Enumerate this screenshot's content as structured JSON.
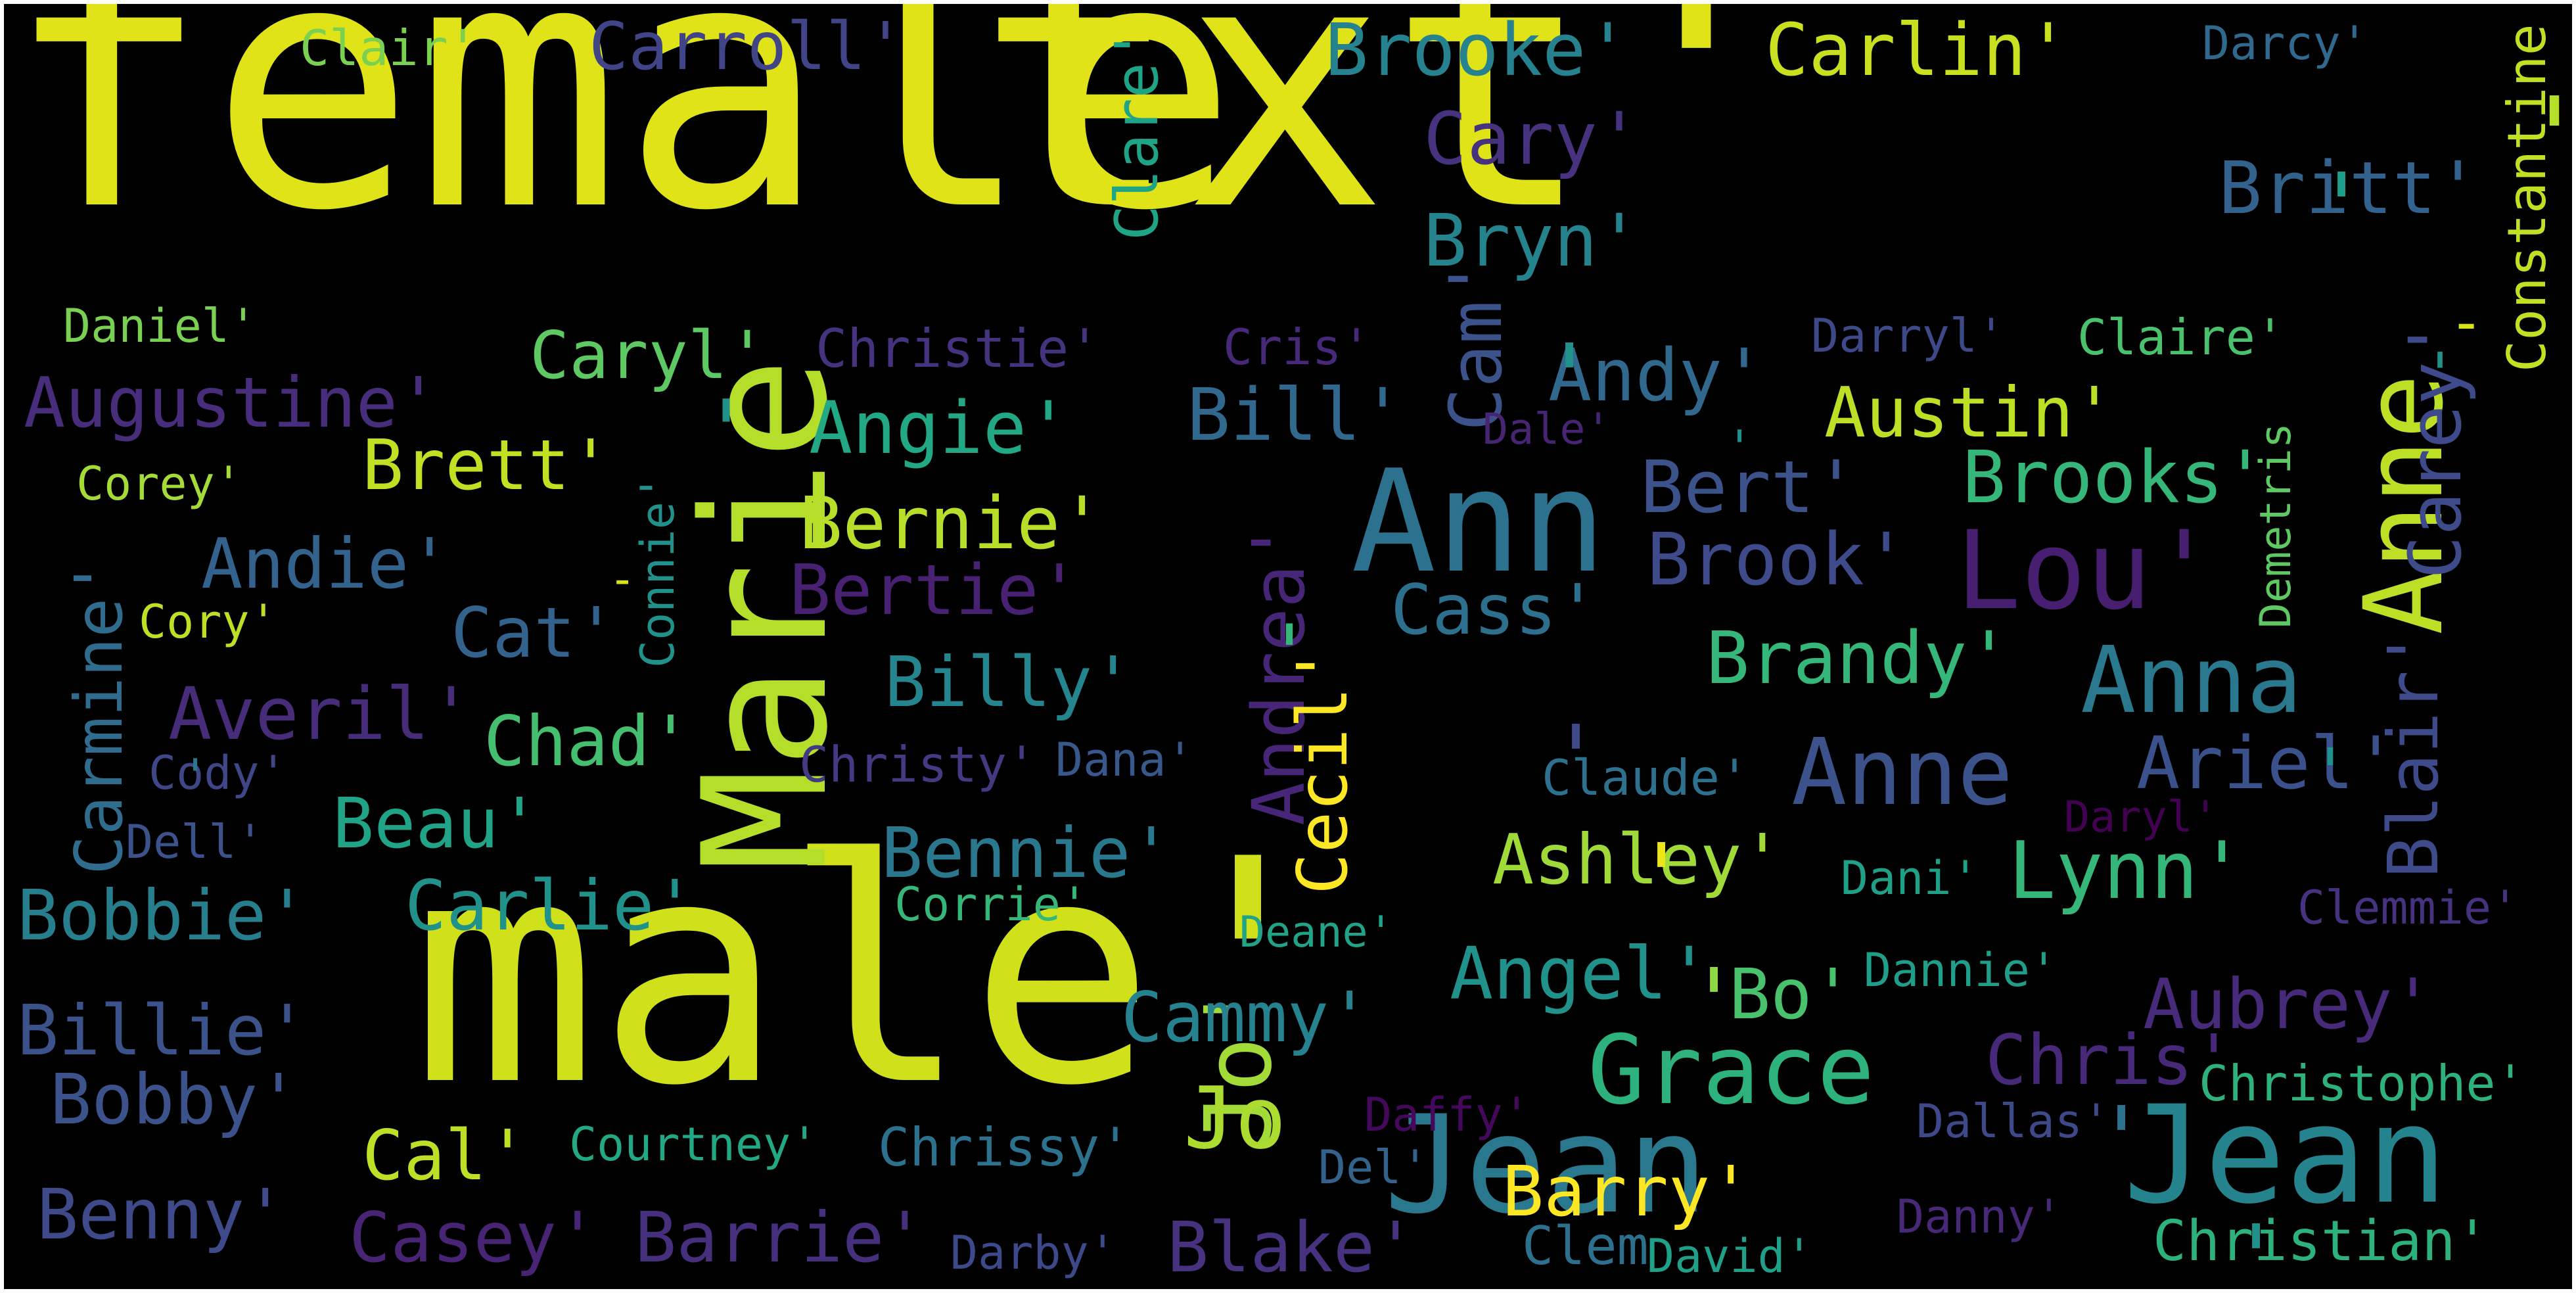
{
  "words": [
    {
      "text": "female",
      "color": "#dfe318"
    },
    {
      "text": "txt'",
      "color": "#dfe318"
    },
    {
      "text": "male'",
      "color": "#d0e11c"
    },
    {
      "text": "Marie",
      "color": "#b5de2b"
    },
    {
      "text": "Jean",
      "color": "#2a788e"
    },
    {
      "text": "Ann",
      "color": "#2c728e"
    },
    {
      "text": "Jean",
      "color": "#25838e"
    },
    {
      "text": "Anne",
      "color": "#bddf26"
    },
    {
      "text": "Grace",
      "color": "#2db27d"
    },
    {
      "text": "Lou'",
      "color": "#481f70"
    },
    {
      "text": "Anne",
      "color": "#3b528b"
    },
    {
      "text": "Anna",
      "color": "#2a788e"
    },
    {
      "text": "Jo'",
      "color": "#a2da37"
    },
    {
      "text": "Jo",
      "color": "#addc30"
    },
    {
      "text": "Brooke'",
      "color": "#26828e"
    },
    {
      "text": "Carlin'",
      "color": "#c8e020"
    },
    {
      "text": "Carroll'",
      "color": "#414487"
    },
    {
      "text": "Clair'",
      "color": "#7ad151"
    },
    {
      "text": "Darcy'",
      "color": "#31688e"
    },
    {
      "text": "Clare'",
      "color": "#20a486"
    },
    {
      "text": "Cary'",
      "color": "#46327e"
    },
    {
      "text": "Britt'",
      "color": "#33638d"
    },
    {
      "text": "Bryn'",
      "color": "#25838e"
    },
    {
      "text": "Constantine",
      "color": "#c2df23"
    },
    {
      "text": "Carey'",
      "color": "#3e4a89"
    },
    {
      "text": "Daniel'",
      "color": "#7ad151"
    },
    {
      "text": "Caryl'",
      "color": "#5ec962"
    },
    {
      "text": "Christie'",
      "color": "#46337f"
    },
    {
      "text": "Cris'",
      "color": "#482878"
    },
    {
      "text": "Cam'",
      "color": "#3b528b"
    },
    {
      "text": "Darryl'",
      "color": "#3e4989"
    },
    {
      "text": "Claire'",
      "color": "#4ac16d"
    },
    {
      "text": "Augustine'",
      "color": "#472d7b"
    },
    {
      "text": "Andy'",
      "color": "#31688e"
    },
    {
      "text": "Bill'",
      "color": "#31688e"
    },
    {
      "text": "Angie'",
      "color": "#22a884"
    },
    {
      "text": "Austin'",
      "color": "#bddf26"
    },
    {
      "text": "Dale'",
      "color": "#482475"
    },
    {
      "text": "Demetris",
      "color": "#5ec962"
    },
    {
      "text": "Brett'",
      "color": "#c2df23"
    },
    {
      "text": "Corey'",
      "color": "#a5db36"
    },
    {
      "text": "Bert'",
      "color": "#3b528b"
    },
    {
      "text": "Brooks'",
      "color": "#35b779"
    },
    {
      "text": "Bernie'",
      "color": "#b8de29"
    },
    {
      "text": "Carmine'",
      "color": "#2f6c8e"
    },
    {
      "text": "Andie'",
      "color": "#33638d"
    },
    {
      "text": "Connie'",
      "color": "#21918c"
    },
    {
      "text": "Bertie'",
      "color": "#482173"
    },
    {
      "text": "Brook'",
      "color": "#3e4a89"
    },
    {
      "text": "Cass'",
      "color": "#2d708e"
    },
    {
      "text": "Cat'",
      "color": "#33638d"
    },
    {
      "text": "Cory'",
      "color": "#bddf26"
    },
    {
      "text": "Andrea'",
      "color": "#482677"
    },
    {
      "text": "Brandy'",
      "color": "#35b779"
    },
    {
      "text": "Blair'",
      "color": "#3e4a89"
    },
    {
      "text": "Billy'",
      "color": "#25858e"
    },
    {
      "text": "Averil'",
      "color": "#472c7a"
    },
    {
      "text": "Cecil'",
      "color": "#fde725"
    },
    {
      "text": "Chad'",
      "color": "#44bf70"
    },
    {
      "text": "Cody'",
      "color": "#3f4788"
    },
    {
      "text": "Christy'",
      "color": "#443a83"
    },
    {
      "text": "Dana'",
      "color": "#38588c"
    },
    {
      "text": "Claude'",
      "color": "#2d718e"
    },
    {
      "text": "Ariel'",
      "color": "#3b518b"
    },
    {
      "text": "Beau'",
      "color": "#20a386"
    },
    {
      "text": "Dell'",
      "color": "#3b528b"
    },
    {
      "text": "Daryl'",
      "color": "#440154"
    },
    {
      "text": "Bennie'",
      "color": "#2a788e"
    },
    {
      "text": "Ashley'",
      "color": "#a0da39"
    },
    {
      "text": "Lynn'",
      "color": "#35b779"
    },
    {
      "text": "Dani'",
      "color": "#1fa188"
    },
    {
      "text": "Bobbie'",
      "color": "#277f8e"
    },
    {
      "text": "Carlie'",
      "color": "#21918c"
    },
    {
      "text": "Corrie'",
      "color": "#35b779"
    },
    {
      "text": "Clemmie'",
      "color": "#46327e"
    },
    {
      "text": "Deane'",
      "color": "#20a386"
    },
    {
      "text": "Angel'",
      "color": "#21918c"
    },
    {
      "text": "Dannie'",
      "color": "#1f9e89"
    },
    {
      "text": "Bo'",
      "color": "#4ac16d"
    },
    {
      "text": "Cammy'",
      "color": "#26828e"
    },
    {
      "text": "Aubrey'",
      "color": "#472a7a"
    },
    {
      "text": "Billie'",
      "color": "#3b528b"
    },
    {
      "text": "Chris'",
      "color": "#482979"
    },
    {
      "text": "Bobby'",
      "color": "#3b528b"
    },
    {
      "text": "Christophe'",
      "color": "#2db27d"
    },
    {
      "text": "Daffy'",
      "color": "#46085c"
    },
    {
      "text": "Dallas'",
      "color": "#3f4889"
    },
    {
      "text": "Cal'",
      "color": "#bddf26"
    },
    {
      "text": "Courtney'",
      "color": "#22a884"
    },
    {
      "text": "Chrissy'",
      "color": "#2c728e"
    },
    {
      "text": "Del'",
      "color": "#33638d"
    },
    {
      "text": "Barry'",
      "color": "#fde725"
    },
    {
      "text": "Benny'",
      "color": "#3e4a89"
    },
    {
      "text": "Casey'",
      "color": "#482475"
    },
    {
      "text": "Barrie'",
      "color": "#46307e"
    },
    {
      "text": "Blake'",
      "color": "#46327e"
    },
    {
      "text": "Danny'",
      "color": "#482878"
    },
    {
      "text": "Christian'",
      "color": "#2db27d"
    },
    {
      "text": "Darby'",
      "color": "#3e4989"
    },
    {
      "text": "Clem",
      "color": "#2d708e"
    },
    {
      "text": "David'",
      "color": "#1fa088"
    },
    {
      "text": "'",
      "color": "#21918c"
    },
    {
      "text": "'",
      "color": "#21918c"
    },
    {
      "text": "'",
      "color": "#3e4a89"
    },
    {
      "text": "'",
      "color": "#ece51b"
    },
    {
      "text": "'",
      "color": "#8fd744"
    },
    {
      "text": "'",
      "color": "#2c728e"
    },
    {
      "text": "'",
      "color": "#21918c"
    },
    {
      "text": "'",
      "color": "#21918c"
    },
    {
      "text": "'",
      "color": "#1f9e89"
    },
    {
      "text": "'",
      "color": "#b5de2b"
    },
    {
      "text": "'",
      "color": "#35b779"
    },
    {
      "text": "'",
      "color": "#21918c"
    },
    {
      "text": "'",
      "color": "#21918c"
    },
    {
      "text": "-",
      "color": "#d8e219"
    },
    {
      "text": "-",
      "color": "#d8e219"
    },
    {
      "text": "'",
      "color": "#2a788e"
    },
    {
      "text": "'",
      "color": "#33638d"
    }
  ]
}
